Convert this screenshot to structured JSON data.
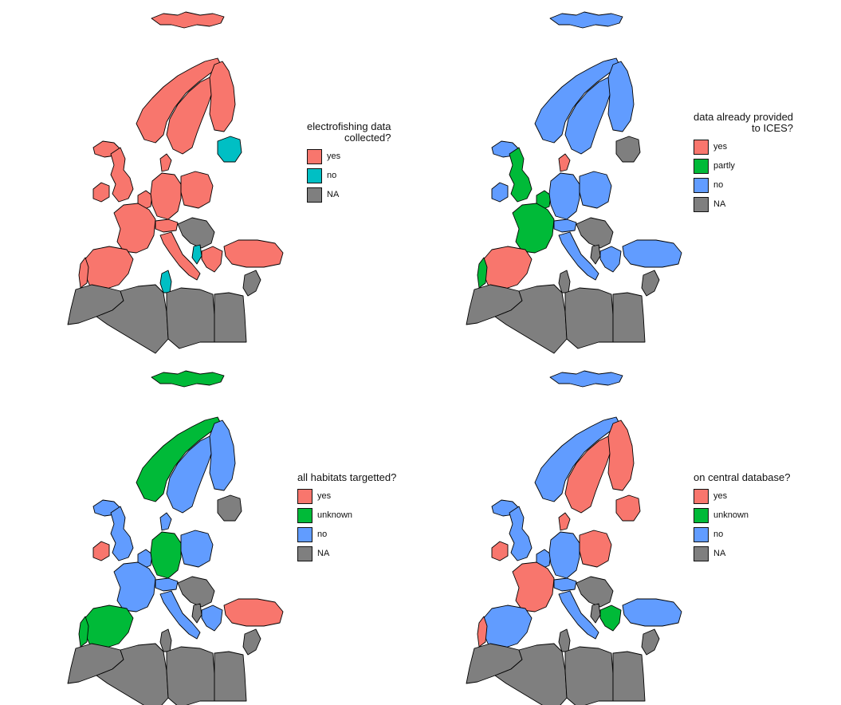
{
  "colors": {
    "yes": "#f8766d",
    "no_teal": "#00bfc4",
    "green": "#00ba38",
    "blue": "#619cff",
    "na": "#7f7f7f"
  },
  "panels": [
    {
      "legend": {
        "title": "electrofishing data\ncollected?",
        "items": [
          {
            "label": "yes",
            "color": "#f8766d"
          },
          {
            "label": "no",
            "color": "#00bfc4"
          },
          {
            "label": "NA",
            "color": "#7f7f7f"
          }
        ]
      },
      "countries": {
        "svalbard": "#f8766d",
        "iceland": "#f8766d",
        "norway": "#f8766d",
        "sweden": "#f8766d",
        "finland": "#f8766d",
        "baltics": "#00bfc4",
        "ireland": "#f8766d",
        "uk": "#f8766d",
        "benelux": "#f8766d",
        "denmark": "#f8766d",
        "germany": "#f8766d",
        "poland": "#f8766d",
        "france": "#f8766d",
        "iberia": "#f8766d",
        "portugal": "#f8766d",
        "alps": "#f8766d",
        "italy": "#f8766d",
        "balkans": "#7f7f7f",
        "albania": "#00bfc4",
        "greece": "#f8766d",
        "turkey": "#f8766d",
        "morocco": "#7f7f7f",
        "algeria": "#7f7f7f",
        "tunisia": "#00bfc4",
        "libya": "#7f7f7f",
        "egypt": "#7f7f7f",
        "levant": "#7f7f7f"
      }
    },
    {
      "legend": {
        "title": "data already provided\nto ICES?",
        "items": [
          {
            "label": "yes",
            "color": "#f8766d"
          },
          {
            "label": "partly",
            "color": "#00ba38"
          },
          {
            "label": "no",
            "color": "#619cff"
          },
          {
            "label": "NA",
            "color": "#7f7f7f"
          }
        ]
      },
      "countries": {
        "svalbard": "#619cff",
        "iceland": "#619cff",
        "norway": "#619cff",
        "sweden": "#619cff",
        "finland": "#619cff",
        "baltics": "#7f7f7f",
        "ireland": "#619cff",
        "uk": "#00ba38",
        "benelux": "#00ba38",
        "denmark": "#f8766d",
        "germany": "#619cff",
        "poland": "#619cff",
        "france": "#00ba38",
        "iberia": "#f8766d",
        "portugal": "#00ba38",
        "alps": "#619cff",
        "italy": "#619cff",
        "balkans": "#7f7f7f",
        "albania": "#7f7f7f",
        "greece": "#619cff",
        "turkey": "#619cff",
        "morocco": "#7f7f7f",
        "algeria": "#7f7f7f",
        "tunisia": "#7f7f7f",
        "libya": "#7f7f7f",
        "egypt": "#7f7f7f",
        "levant": "#7f7f7f"
      }
    },
    {
      "legend": {
        "title": "all habitats targetted?",
        "items": [
          {
            "label": "yes",
            "color": "#f8766d"
          },
          {
            "label": "unknown",
            "color": "#00ba38"
          },
          {
            "label": "no",
            "color": "#619cff"
          },
          {
            "label": "NA",
            "color": "#7f7f7f"
          }
        ]
      },
      "countries": {
        "svalbard": "#00ba38",
        "iceland": "#619cff",
        "norway": "#00ba38",
        "sweden": "#619cff",
        "finland": "#619cff",
        "baltics": "#7f7f7f",
        "ireland": "#f8766d",
        "uk": "#619cff",
        "benelux": "#619cff",
        "denmark": "#619cff",
        "germany": "#00ba38",
        "poland": "#619cff",
        "france": "#619cff",
        "iberia": "#00ba38",
        "portugal": "#00ba38",
        "alps": "#619cff",
        "italy": "#619cff",
        "balkans": "#7f7f7f",
        "albania": "#7f7f7f",
        "greece": "#619cff",
        "turkey": "#f8766d",
        "morocco": "#7f7f7f",
        "algeria": "#7f7f7f",
        "tunisia": "#7f7f7f",
        "libya": "#7f7f7f",
        "egypt": "#7f7f7f",
        "levant": "#7f7f7f"
      }
    },
    {
      "legend": {
        "title": "on central database?",
        "items": [
          {
            "label": "yes",
            "color": "#f8766d"
          },
          {
            "label": "unknown",
            "color": "#00ba38"
          },
          {
            "label": "no",
            "color": "#619cff"
          },
          {
            "label": "NA",
            "color": "#7f7f7f"
          }
        ]
      },
      "countries": {
        "svalbard": "#619cff",
        "iceland": "#619cff",
        "norway": "#619cff",
        "sweden": "#f8766d",
        "finland": "#f8766d",
        "baltics": "#f8766d",
        "ireland": "#f8766d",
        "uk": "#619cff",
        "benelux": "#619cff",
        "denmark": "#f8766d",
        "germany": "#619cff",
        "poland": "#f8766d",
        "france": "#f8766d",
        "iberia": "#619cff",
        "portugal": "#f8766d",
        "alps": "#619cff",
        "italy": "#619cff",
        "balkans": "#7f7f7f",
        "albania": "#7f7f7f",
        "greece": "#00ba38",
        "turkey": "#619cff",
        "morocco": "#7f7f7f",
        "algeria": "#7f7f7f",
        "tunisia": "#7f7f7f",
        "libya": "#7f7f7f",
        "egypt": "#7f7f7f",
        "levant": "#7f7f7f"
      }
    }
  ]
}
